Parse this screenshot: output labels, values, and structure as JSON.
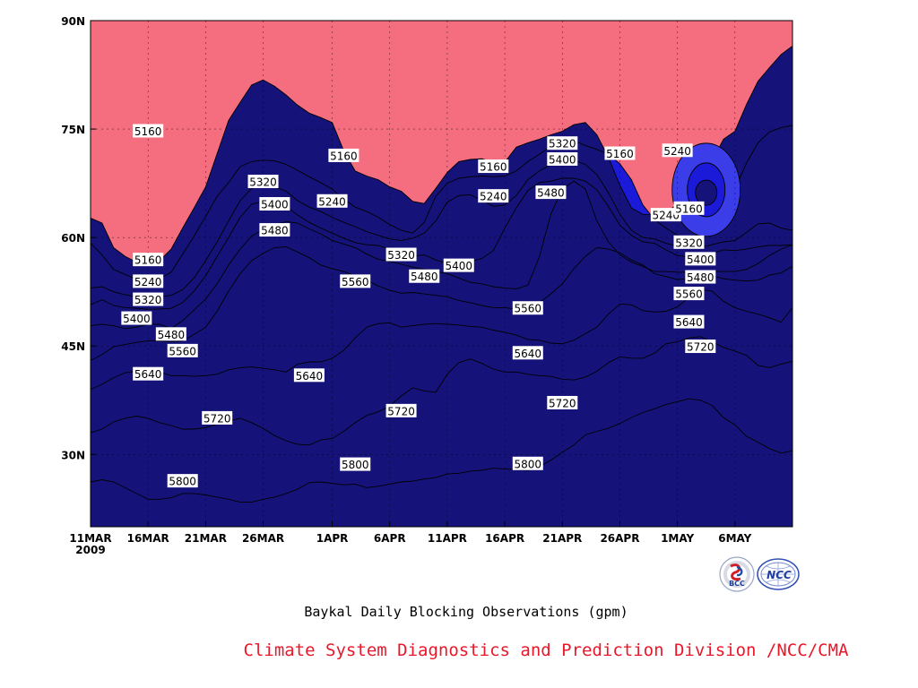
{
  "chart_data": {
    "type": "contour",
    "title": "Baykal Daily Blocking Observations (gpm)",
    "credit": "Climate System Diagnostics and Prediction Division /NCC/CMA",
    "x_ticks": [
      "11MAR",
      "16MAR",
      "21MAR",
      "26MAR",
      "1APR",
      "6APR",
      "11APR",
      "16APR",
      "21APR",
      "26APR",
      "1MAY",
      "6MAY"
    ],
    "x_start_year": "2009",
    "y_ticks": [
      "30N",
      "45N",
      "60N",
      "75N",
      "90N"
    ],
    "xlim": [
      "2009-03-11",
      "2009-05-11"
    ],
    "ylim": [
      20,
      90
    ],
    "grid": true,
    "levels": [
      5160,
      5240,
      5320,
      5400,
      5480,
      5560,
      5640,
      5720,
      5800
    ],
    "fill_colors": [
      "#15137a",
      "#1b1ad8",
      "#3b3ee8",
      "#5a8ee6",
      "#66c4fc",
      "#fcfa7c",
      "#fcdca0",
      "#fca46c",
      "#fc7444",
      "#f46e80"
    ],
    "contour_labels": [
      {
        "date": "2009-03-16",
        "lat": 74.7,
        "value": "5160"
      },
      {
        "date": "2009-03-16",
        "lat": 56.9,
        "value": "5160"
      },
      {
        "date": "2009-03-16",
        "lat": 53.9,
        "value": "5240"
      },
      {
        "date": "2009-03-16",
        "lat": 51.4,
        "value": "5320"
      },
      {
        "date": "2009-03-15",
        "lat": 48.8,
        "value": "5400"
      },
      {
        "date": "2009-03-18",
        "lat": 46.6,
        "value": "5480"
      },
      {
        "date": "2009-03-19",
        "lat": 44.3,
        "value": "5560"
      },
      {
        "date": "2009-03-16",
        "lat": 41.1,
        "value": "5640"
      },
      {
        "date": "2009-03-22",
        "lat": 35.0,
        "value": "5720"
      },
      {
        "date": "2009-03-19",
        "lat": 26.3,
        "value": "5800"
      },
      {
        "date": "2009-03-26",
        "lat": 67.7,
        "value": "5320"
      },
      {
        "date": "2009-03-27",
        "lat": 64.6,
        "value": "5400"
      },
      {
        "date": "2009-03-27",
        "lat": 61.0,
        "value": "5480"
      },
      {
        "date": "2009-03-30",
        "lat": 40.9,
        "value": "5640"
      },
      {
        "date": "2009-04-02",
        "lat": 71.3,
        "value": "5160"
      },
      {
        "date": "2009-04-01",
        "lat": 65.0,
        "value": "5240"
      },
      {
        "date": "2009-04-03",
        "lat": 53.9,
        "value": "5560"
      },
      {
        "date": "2009-04-03",
        "lat": 28.6,
        "value": "5800"
      },
      {
        "date": "2009-04-07",
        "lat": 57.6,
        "value": "5320"
      },
      {
        "date": "2009-04-07",
        "lat": 36.0,
        "value": "5720"
      },
      {
        "date": "2009-04-09",
        "lat": 54.6,
        "value": "5480"
      },
      {
        "date": "2009-04-12",
        "lat": 56.1,
        "value": "5400"
      },
      {
        "date": "2009-04-15",
        "lat": 69.8,
        "value": "5160"
      },
      {
        "date": "2009-04-15",
        "lat": 65.7,
        "value": "5240"
      },
      {
        "date": "2009-04-18",
        "lat": 50.2,
        "value": "5560"
      },
      {
        "date": "2009-04-18",
        "lat": 44.0,
        "value": "5640"
      },
      {
        "date": "2009-04-18",
        "lat": 28.7,
        "value": "5800"
      },
      {
        "date": "2009-04-21",
        "lat": 73.0,
        "value": "5320"
      },
      {
        "date": "2009-04-21",
        "lat": 70.8,
        "value": "5400"
      },
      {
        "date": "2009-04-20",
        "lat": 66.2,
        "value": "5480"
      },
      {
        "date": "2009-04-21",
        "lat": 37.1,
        "value": "5720"
      },
      {
        "date": "2009-04-26",
        "lat": 71.6,
        "value": "5160"
      },
      {
        "date": "2009-05-01",
        "lat": 72.0,
        "value": "5240"
      },
      {
        "date": "2009-04-30",
        "lat": 63.1,
        "value": "5240"
      },
      {
        "date": "2009-05-02",
        "lat": 64.0,
        "value": "5160"
      },
      {
        "date": "2009-05-02",
        "lat": 59.3,
        "value": "5320"
      },
      {
        "date": "2009-05-03",
        "lat": 57.0,
        "value": "5400"
      },
      {
        "date": "2009-05-03",
        "lat": 54.5,
        "value": "5480"
      },
      {
        "date": "2009-05-02",
        "lat": 52.2,
        "value": "5560"
      },
      {
        "date": "2009-05-02",
        "lat": 48.3,
        "value": "5640"
      },
      {
        "date": "2009-05-03",
        "lat": 44.9,
        "value": "5720"
      }
    ],
    "logos": [
      "BCC",
      "NCC"
    ]
  }
}
